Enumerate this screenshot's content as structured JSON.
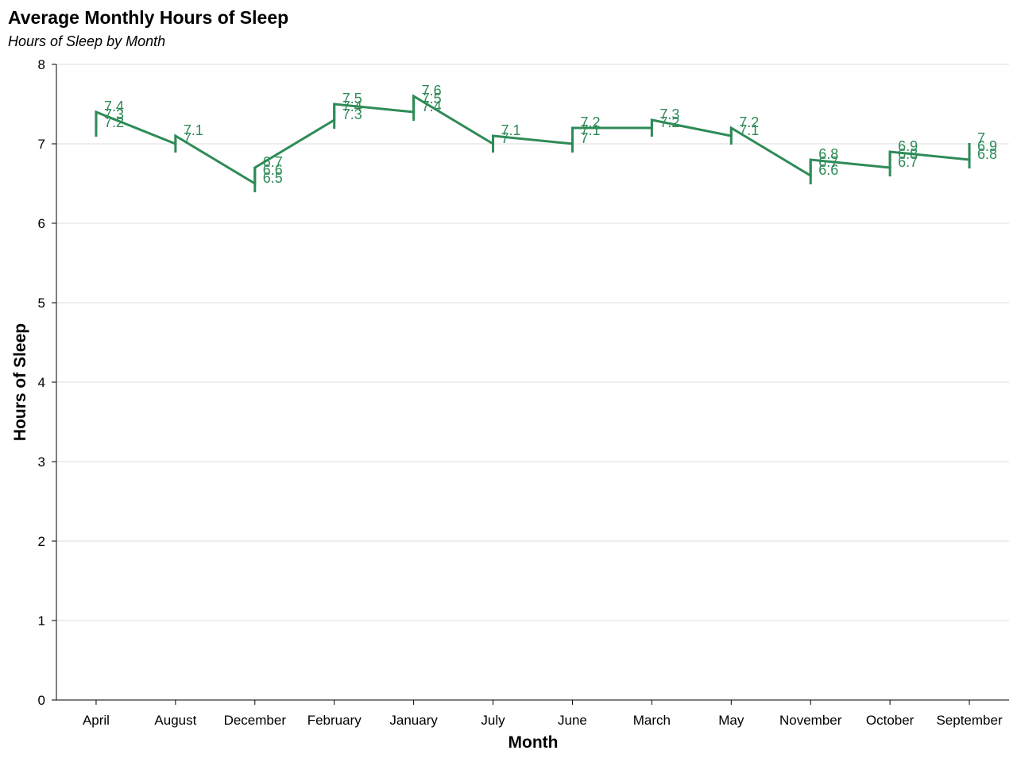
{
  "chart_data": {
    "type": "line",
    "title": "Average Monthly Hours of Sleep",
    "subtitle": "Hours of Sleep by Month",
    "xlabel": "Month",
    "ylabel": "Hours of Sleep",
    "ylim": [
      0,
      8
    ],
    "yticks": [
      0,
      1,
      2,
      3,
      4,
      5,
      6,
      7,
      8
    ],
    "grid": "horizontal",
    "color": "#2e8b57",
    "categories": [
      "April",
      "August",
      "December",
      "February",
      "January",
      "July",
      "June",
      "March",
      "May",
      "November",
      "October",
      "September"
    ],
    "points": [
      {
        "month": "April",
        "values": [
          7.4,
          7.3,
          7.2
        ]
      },
      {
        "month": "August",
        "values": [
          7.1,
          7.0
        ]
      },
      {
        "month": "December",
        "values": [
          6.7,
          6.6,
          6.5
        ]
      },
      {
        "month": "February",
        "values": [
          7.5,
          7.4,
          7.3
        ]
      },
      {
        "month": "January",
        "values": [
          7.6,
          7.5,
          7.4
        ]
      },
      {
        "month": "July",
        "values": [
          7.1,
          7.0
        ]
      },
      {
        "month": "June",
        "values": [
          7.2,
          7.1,
          7.0
        ]
      },
      {
        "month": "March",
        "values": [
          7.3,
          7.2
        ]
      },
      {
        "month": "May",
        "values": [
          7.2,
          7.1
        ]
      },
      {
        "month": "November",
        "values": [
          6.8,
          6.7,
          6.6
        ]
      },
      {
        "month": "October",
        "values": [
          6.9,
          6.8,
          6.7
        ]
      },
      {
        "month": "September",
        "values": [
          7.0,
          6.9,
          6.8
        ]
      }
    ]
  }
}
